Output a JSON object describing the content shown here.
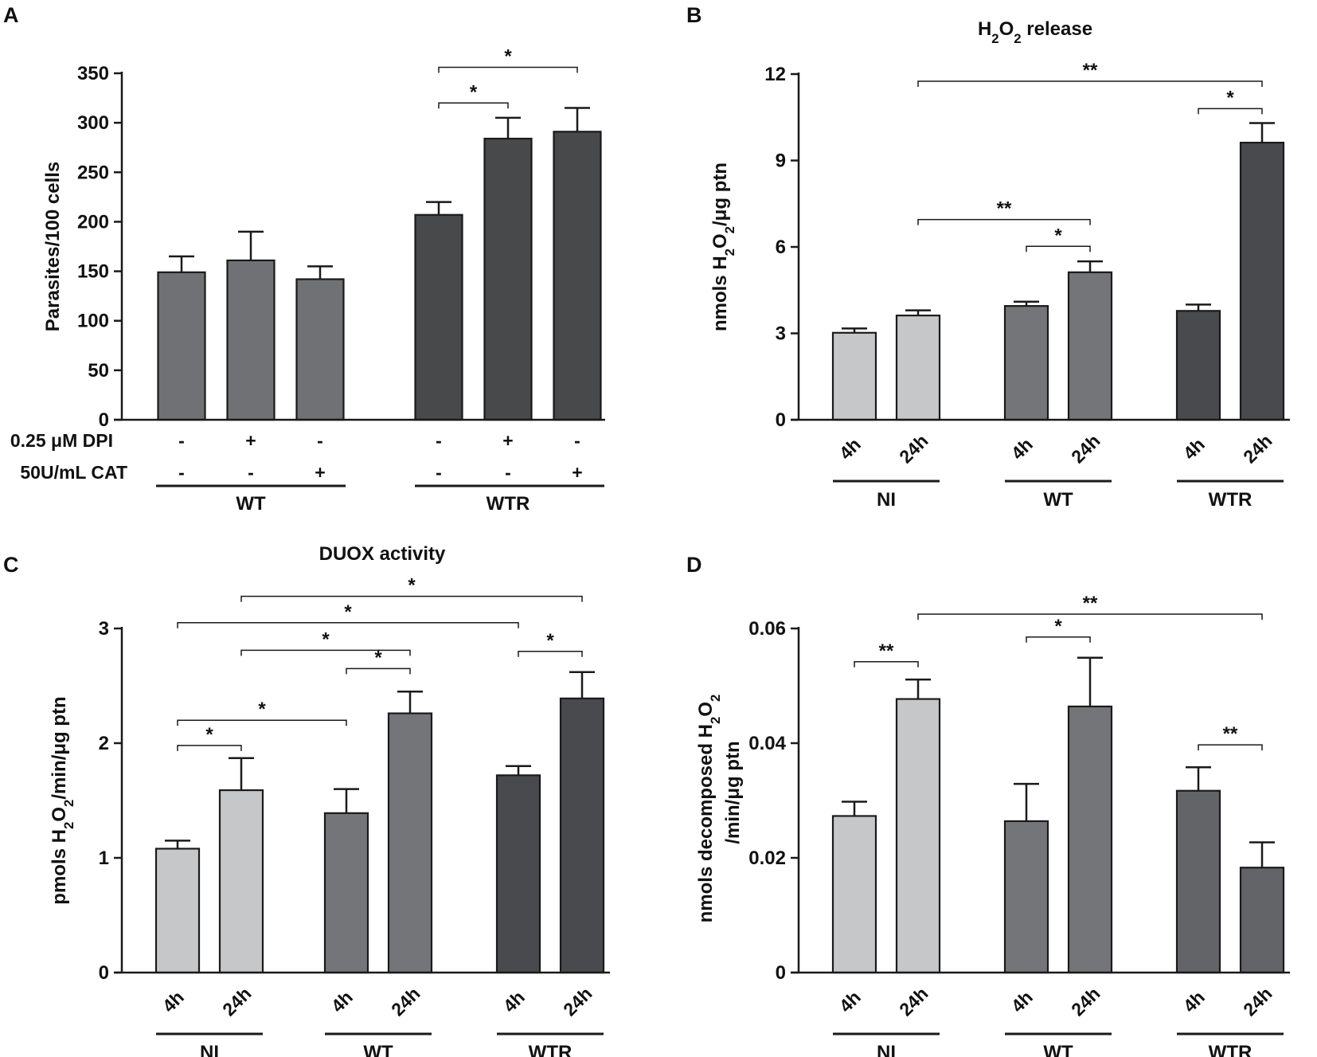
{
  "colors": {
    "light": "#c6c7c9",
    "mid": "#747579",
    "dark": "#494a4d",
    "panelA_wt": "#707174",
    "panelA_wtr": "#48494b",
    "panelD_wtr": "#636467"
  },
  "chart_data": [
    {
      "panel": "A",
      "type": "bar",
      "title": "",
      "ylabel": "Parasites/100 cells",
      "ylim": [
        0,
        350
      ],
      "yticks": [
        0,
        50,
        100,
        150,
        200,
        250,
        300,
        350
      ],
      "ytick_labels": [
        "0",
        "50",
        "100",
        "150",
        "200",
        "250",
        "300",
        "350"
      ],
      "row_labels": [
        "0.25 μM DPI",
        "50U/mL CAT"
      ],
      "groups": [
        "WT",
        "WTR"
      ],
      "bars": [
        {
          "group": "WT",
          "value": 149,
          "error": 16,
          "dpi": "-",
          "cat": "-"
        },
        {
          "group": "WT",
          "value": 161,
          "error": 29,
          "dpi": "+",
          "cat": "-"
        },
        {
          "group": "WT",
          "value": 142,
          "error": 13,
          "dpi": "-",
          "cat": "+"
        },
        {
          "group": "WTR",
          "value": 207,
          "error": 13,
          "dpi": "-",
          "cat": "-"
        },
        {
          "group": "WTR",
          "value": 284,
          "error": 21,
          "dpi": "+",
          "cat": "-"
        },
        {
          "group": "WTR",
          "value": 291,
          "error": 24,
          "dpi": "-",
          "cat": "+"
        }
      ],
      "significance": [
        {
          "from": 3,
          "to": 4,
          "label": "*",
          "y": 320
        },
        {
          "from": 3,
          "to": 5,
          "label": "*",
          "y": 356
        }
      ]
    },
    {
      "panel": "B",
      "type": "bar",
      "title": "H2O2 release",
      "ylabel": "nmols H2O2/μg ptn",
      "ylim": [
        0,
        12
      ],
      "yticks": [
        0,
        3,
        6,
        9,
        12
      ],
      "ytick_labels": [
        "0",
        "3",
        "6",
        "9",
        "12"
      ],
      "groups": [
        "NI",
        "WT",
        "WTR"
      ],
      "bars": [
        {
          "group": "NI",
          "label": "4h",
          "value": 3.02,
          "error": 0.15
        },
        {
          "group": "NI",
          "label": "24h",
          "value": 3.62,
          "error": 0.18
        },
        {
          "group": "WT",
          "label": "4h",
          "value": 3.95,
          "error": 0.15
        },
        {
          "group": "WT",
          "label": "24h",
          "value": 5.12,
          "error": 0.38
        },
        {
          "group": "WTR",
          "label": "4h",
          "value": 3.78,
          "error": 0.22
        },
        {
          "group": "WTR",
          "label": "24h",
          "value": 9.62,
          "error": 0.68
        }
      ],
      "significance": [
        {
          "from": 2,
          "to": 3,
          "label": "*",
          "y": 6.02
        },
        {
          "from": 1,
          "to": 3,
          "label": "**",
          "y": 6.95
        },
        {
          "from": 4,
          "to": 5,
          "label": "*",
          "y": 10.8
        },
        {
          "from": 1,
          "to": 5,
          "label": "**",
          "y": 11.75
        }
      ]
    },
    {
      "panel": "C",
      "type": "bar",
      "title": "DUOX activity",
      "ylabel": "pmols H2O2/min/μg ptn",
      "ylim": [
        0,
        3
      ],
      "yticks": [
        0,
        1,
        2,
        3
      ],
      "ytick_labels": [
        "0",
        "1",
        "2",
        "3"
      ],
      "groups": [
        "NI",
        "WT",
        "WTR"
      ],
      "bars": [
        {
          "group": "NI",
          "label": "4h",
          "value": 1.08,
          "error": 0.07
        },
        {
          "group": "NI",
          "label": "24h",
          "value": 1.59,
          "error": 0.28
        },
        {
          "group": "WT",
          "label": "4h",
          "value": 1.39,
          "error": 0.21
        },
        {
          "group": "WT",
          "label": "24h",
          "value": 2.26,
          "error": 0.19
        },
        {
          "group": "WTR",
          "label": "4h",
          "value": 1.72,
          "error": 0.08
        },
        {
          "group": "WTR",
          "label": "24h",
          "value": 2.39,
          "error": 0.23
        }
      ],
      "significance": [
        {
          "from": 0,
          "to": 1,
          "label": "*",
          "y": 1.98
        },
        {
          "from": 0,
          "to": 2,
          "label": "*",
          "y": 2.2
        },
        {
          "from": 2,
          "to": 3,
          "label": "*",
          "y": 2.65
        },
        {
          "from": 1,
          "to": 3,
          "label": "*",
          "y": 2.81
        },
        {
          "from": 4,
          "to": 5,
          "label": "*",
          "y": 2.8
        },
        {
          "from": 0,
          "to": 4,
          "label": "*",
          "y": 3.05
        },
        {
          "from": 1,
          "to": 5,
          "label": "*",
          "y": 3.28
        }
      ]
    },
    {
      "panel": "D",
      "type": "bar",
      "title": "",
      "ylabel_line1": "nmols decomposed H2O2",
      "ylabel_line2": "/min/μg ptn",
      "ylim": [
        0,
        0.06
      ],
      "yticks": [
        0,
        0.02,
        0.04,
        0.06
      ],
      "ytick_labels": [
        "0",
        "0.02",
        "0.04",
        "0.06"
      ],
      "groups": [
        "NI",
        "WT",
        "WTR"
      ],
      "bars": [
        {
          "group": "NI",
          "label": "4h",
          "value": 0.0273,
          "error": 0.0025
        },
        {
          "group": "NI",
          "label": "24h",
          "value": 0.0477,
          "error": 0.0034
        },
        {
          "group": "WT",
          "label": "4h",
          "value": 0.0264,
          "error": 0.0065
        },
        {
          "group": "WT",
          "label": "24h",
          "value": 0.0464,
          "error": 0.0085
        },
        {
          "group": "WTR",
          "label": "4h",
          "value": 0.0317,
          "error": 0.0041
        },
        {
          "group": "WTR",
          "label": "24h",
          "value": 0.0183,
          "error": 0.0044
        }
      ],
      "significance": [
        {
          "from": 0,
          "to": 1,
          "label": "**",
          "y": 0.0542
        },
        {
          "from": 2,
          "to": 3,
          "label": "*",
          "y": 0.0585
        },
        {
          "from": 4,
          "to": 5,
          "label": "**",
          "y": 0.0397
        },
        {
          "from": 1,
          "to": 5,
          "label": "**",
          "y": 0.0625
        }
      ]
    }
  ]
}
